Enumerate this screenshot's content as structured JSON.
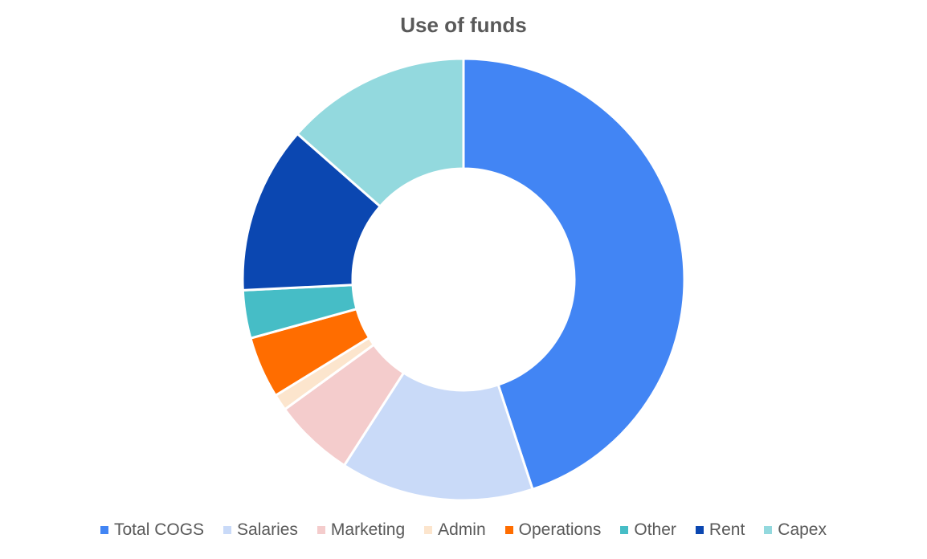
{
  "chart_data": {
    "type": "pie",
    "variant": "donut",
    "title": "Use of funds",
    "legend_position": "bottom",
    "categories": [
      "Total COGS",
      "Salaries",
      "Marketing",
      "Admin",
      "Operations",
      "Other",
      "Rent",
      "Capex"
    ],
    "values": [
      44.8,
      14.1,
      5.9,
      1.2,
      4.5,
      3.5,
      12.2,
      13.5
    ],
    "colors": [
      "#4285F4",
      "#C9DAF8",
      "#F4CCCC",
      "#FCE5CD",
      "#FF6D00",
      "#46BDC6",
      "#0B47B1",
      "#93D9DE"
    ]
  }
}
